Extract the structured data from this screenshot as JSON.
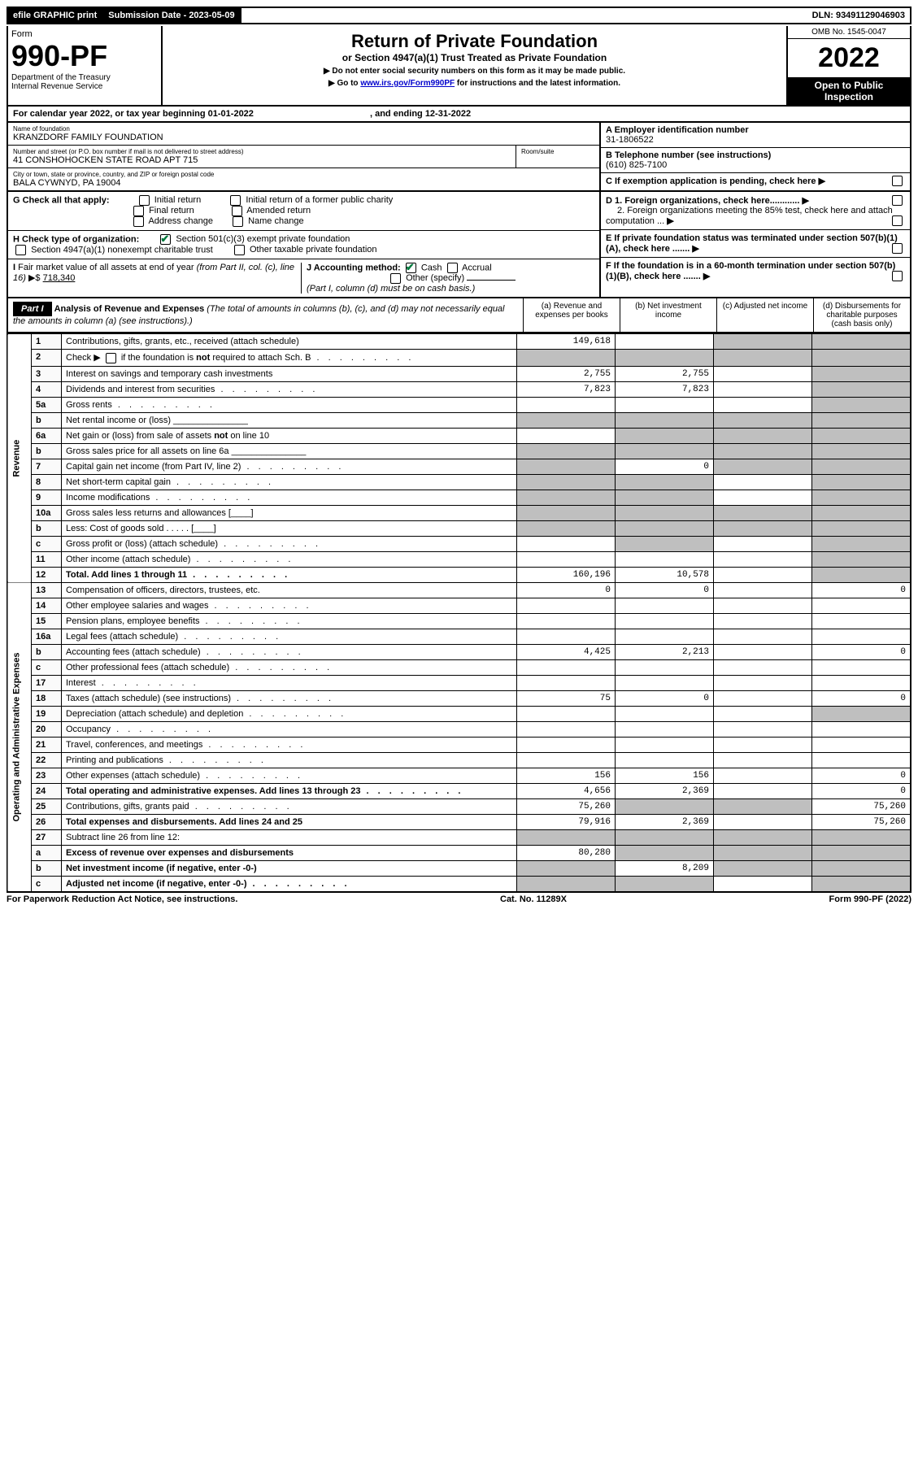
{
  "topbar": {
    "efile": "efile GRAPHIC print",
    "submission_label": "Submission Date - 2023-05-09",
    "dln": "DLN: 93491129046903"
  },
  "header": {
    "form_word": "Form",
    "form_number": "990-PF",
    "dept": "Department of the Treasury",
    "irs": "Internal Revenue Service",
    "title": "Return of Private Foundation",
    "subtitle": "or Section 4947(a)(1) Trust Treated as Private Foundation",
    "instr1": "▶ Do not enter social security numbers on this form as it may be made public.",
    "instr2_pre": "▶ Go to ",
    "instr2_link": "www.irs.gov/Form990PF",
    "instr2_post": " for instructions and the latest information.",
    "omb": "OMB No. 1545-0047",
    "year": "2022",
    "open": "Open to Public Inspection"
  },
  "calyear": "For calendar year 2022, or tax year beginning 01-01-2022",
  "calyear_end": ", and ending 12-31-2022",
  "id": {
    "name_label": "Name of foundation",
    "name": "KRANZDORF FAMILY FOUNDATION",
    "addr_label": "Number and street (or P.O. box number if mail is not delivered to street address)",
    "addr": "41 CONSHOHOCKEN STATE ROAD APT 715",
    "room_label": "Room/suite",
    "city_label": "City or town, state or province, country, and ZIP or foreign postal code",
    "city": "BALA CYWNYD, PA  19004",
    "ein_label": "A Employer identification number",
    "ein": "31-1806522",
    "phone_label": "B Telephone number (see instructions)",
    "phone": "(610) 825-7100",
    "c_label": "C If exemption application is pending, check here"
  },
  "checks": {
    "g_label": "G Check all that apply:",
    "g_initial": "Initial return",
    "g_initial_former": "Initial return of a former public charity",
    "g_final": "Final return",
    "g_amended": "Amended return",
    "g_address": "Address change",
    "g_name": "Name change",
    "h_label": "H Check type of organization:",
    "h_501c3": "Section 501(c)(3) exempt private foundation",
    "h_4947": "Section 4947(a)(1) nonexempt charitable trust",
    "h_other": "Other taxable private foundation",
    "i_label": "I Fair market value of all assets at end of year (from Part II, col. (c), line 16) ▶$",
    "i_value": "718,340",
    "j_label": "J Accounting method:",
    "j_cash": "Cash",
    "j_accrual": "Accrual",
    "j_other": "Other (specify)",
    "j_note": "(Part I, column (d) must be on cash basis.)",
    "d1": "D 1. Foreign organizations, check here............",
    "d2": "2. Foreign organizations meeting the 85% test, check here and attach computation ...",
    "e": "E  If private foundation status was terminated under section 507(b)(1)(A), check here .......",
    "f": "F  If the foundation is in a 60-month termination under section 507(b)(1)(B), check here .......",
    "arrow": "▶"
  },
  "part1": {
    "label": "Part I",
    "title": "Analysis of Revenue and Expenses",
    "title_note": " (The total of amounts in columns (b), (c), and (d) may not necessarily equal the amounts in column (a) (see instructions).)",
    "col_a": "(a)   Revenue and expenses per books",
    "col_b": "(b)   Net investment income",
    "col_c": "(c)   Adjusted net income",
    "col_d": "(d)  Disbursements for charitable purposes (cash basis only)"
  },
  "side_labels": {
    "revenue": "Revenue",
    "expenses": "Operating and Administrative Expenses"
  },
  "rows": [
    {
      "n": "1",
      "d": "Contributions, gifts, grants, etc., received (attach schedule)",
      "a": "149,618",
      "b": "",
      "c": "shaded",
      "e": "shaded"
    },
    {
      "n": "2",
      "d": "Check ▶ ☐ if the foundation is not required to attach Sch. B",
      "dots": true,
      "a": "shaded",
      "b": "shaded",
      "c": "shaded",
      "e": "shaded"
    },
    {
      "n": "3",
      "d": "Interest on savings and temporary cash investments",
      "a": "2,755",
      "b": "2,755",
      "c": "",
      "e": "shaded"
    },
    {
      "n": "4",
      "d": "Dividends and interest from securities",
      "dots": true,
      "a": "7,823",
      "b": "7,823",
      "c": "",
      "e": "shaded"
    },
    {
      "n": "5a",
      "d": "Gross rents",
      "dots": true,
      "a": "",
      "b": "",
      "c": "",
      "e": "shaded"
    },
    {
      "n": "b",
      "d": "Net rental income or (loss)  _______________",
      "a": "shaded",
      "b": "shaded",
      "c": "shaded",
      "e": "shaded"
    },
    {
      "n": "6a",
      "d": "Net gain or (loss) from sale of assets not on line 10",
      "a": "",
      "b": "shaded",
      "c": "shaded",
      "e": "shaded"
    },
    {
      "n": "b",
      "d": "Gross sales price for all assets on line 6a _______________",
      "a": "shaded",
      "b": "shaded",
      "c": "shaded",
      "e": "shaded"
    },
    {
      "n": "7",
      "d": "Capital gain net income (from Part IV, line 2)",
      "dots": true,
      "a": "shaded",
      "b": "0",
      "c": "shaded",
      "e": "shaded"
    },
    {
      "n": "8",
      "d": "Net short-term capital gain",
      "dots": true,
      "a": "shaded",
      "b": "shaded",
      "c": "",
      "e": "shaded"
    },
    {
      "n": "9",
      "d": "Income modifications",
      "dots": true,
      "a": "shaded",
      "b": "shaded",
      "c": "",
      "e": "shaded"
    },
    {
      "n": "10a",
      "d": "Gross sales less returns and allowances   [____]",
      "a": "shaded",
      "b": "shaded",
      "c": "shaded",
      "e": "shaded"
    },
    {
      "n": "b",
      "d": "Less: Cost of goods sold   . . . . .   [____]",
      "a": "shaded",
      "b": "shaded",
      "c": "shaded",
      "e": "shaded"
    },
    {
      "n": "c",
      "d": "Gross profit or (loss) (attach schedule)",
      "dots": true,
      "a": "",
      "b": "shaded",
      "c": "",
      "e": "shaded"
    },
    {
      "n": "11",
      "d": "Other income (attach schedule)",
      "dots": true,
      "a": "",
      "b": "",
      "c": "",
      "e": "shaded"
    },
    {
      "n": "12",
      "d": "Total. Add lines 1 through 11",
      "dots": true,
      "bold": true,
      "a": "160,196",
      "b": "10,578",
      "c": "",
      "e": "shaded"
    },
    {
      "n": "13",
      "d": "Compensation of officers, directors, trustees, etc.",
      "a": "0",
      "b": "0",
      "c": "",
      "e": "0"
    },
    {
      "n": "14",
      "d": "Other employee salaries and wages",
      "dots": true,
      "a": "",
      "b": "",
      "c": "",
      "e": ""
    },
    {
      "n": "15",
      "d": "Pension plans, employee benefits",
      "dots": true,
      "a": "",
      "b": "",
      "c": "",
      "e": ""
    },
    {
      "n": "16a",
      "d": "Legal fees (attach schedule)",
      "dots": true,
      "a": "",
      "b": "",
      "c": "",
      "e": ""
    },
    {
      "n": "b",
      "d": "Accounting fees (attach schedule)",
      "dots": true,
      "a": "4,425",
      "b": "2,213",
      "c": "",
      "e": "0"
    },
    {
      "n": "c",
      "d": "Other professional fees (attach schedule)",
      "dots": true,
      "a": "",
      "b": "",
      "c": "",
      "e": ""
    },
    {
      "n": "17",
      "d": "Interest",
      "dots": true,
      "a": "",
      "b": "",
      "c": "",
      "e": ""
    },
    {
      "n": "18",
      "d": "Taxes (attach schedule) (see instructions)",
      "dots": true,
      "a": "75",
      "b": "0",
      "c": "",
      "e": "0"
    },
    {
      "n": "19",
      "d": "Depreciation (attach schedule) and depletion",
      "dots": true,
      "a": "",
      "b": "",
      "c": "",
      "e": "shaded"
    },
    {
      "n": "20",
      "d": "Occupancy",
      "dots": true,
      "a": "",
      "b": "",
      "c": "",
      "e": ""
    },
    {
      "n": "21",
      "d": "Travel, conferences, and meetings",
      "dots": true,
      "a": "",
      "b": "",
      "c": "",
      "e": ""
    },
    {
      "n": "22",
      "d": "Printing and publications",
      "dots": true,
      "a": "",
      "b": "",
      "c": "",
      "e": ""
    },
    {
      "n": "23",
      "d": "Other expenses (attach schedule)",
      "dots": true,
      "a": "156",
      "b": "156",
      "c": "",
      "e": "0"
    },
    {
      "n": "24",
      "d": "Total operating and administrative expenses. Add lines 13 through 23",
      "dots": true,
      "bold": true,
      "a": "4,656",
      "b": "2,369",
      "c": "",
      "e": "0"
    },
    {
      "n": "25",
      "d": "Contributions, gifts, grants paid",
      "dots": true,
      "a": "75,260",
      "b": "shaded",
      "c": "shaded",
      "e": "75,260"
    },
    {
      "n": "26",
      "d": "Total expenses and disbursements. Add lines 24 and 25",
      "bold": true,
      "a": "79,916",
      "b": "2,369",
      "c": "",
      "e": "75,260"
    },
    {
      "n": "27",
      "d": "Subtract line 26 from line 12:",
      "a": "shaded",
      "b": "shaded",
      "c": "shaded",
      "e": "shaded"
    },
    {
      "n": "a",
      "d": "Excess of revenue over expenses and disbursements",
      "bold": true,
      "a": "80,280",
      "b": "shaded",
      "c": "shaded",
      "e": "shaded"
    },
    {
      "n": "b",
      "d": "Net investment income (if negative, enter -0-)",
      "bold": true,
      "a": "shaded",
      "b": "8,209",
      "c": "shaded",
      "e": "shaded"
    },
    {
      "n": "c",
      "d": "Adjusted net income (if negative, enter -0-)",
      "dots": true,
      "bold": true,
      "a": "shaded",
      "b": "shaded",
      "c": "",
      "e": "shaded"
    }
  ],
  "footer": {
    "left": "For Paperwork Reduction Act Notice, see instructions.",
    "center": "Cat. No. 11289X",
    "right": "Form 990-PF (2022)"
  }
}
